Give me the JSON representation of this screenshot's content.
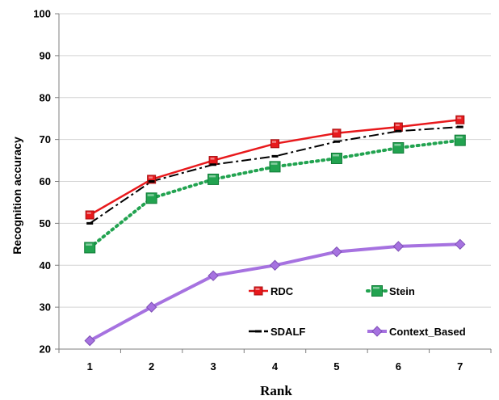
{
  "chart_data": {
    "type": "line",
    "title": "",
    "xlabel": "Rank",
    "ylabel": "Recognition accuracy",
    "x": [
      1,
      2,
      3,
      4,
      5,
      6,
      7
    ],
    "x_tick_labels": [
      "1",
      "2",
      "3",
      "4",
      "5",
      "6",
      "7"
    ],
    "ylim": [
      20,
      100
    ],
    "y_ticks": [
      20,
      30,
      40,
      50,
      60,
      70,
      80,
      90,
      100
    ],
    "y_tick_labels": [
      "20",
      "30",
      "40",
      "50",
      "60",
      "70",
      "80",
      "90",
      "100"
    ],
    "grid": "horizontal",
    "legend_position": "inside-lower",
    "series": [
      {
        "name": "RDC",
        "values": [
          52,
          60.5,
          65,
          69,
          71.5,
          73,
          74.7
        ],
        "color": "#e8191c",
        "marker": "square",
        "line": "solid"
      },
      {
        "name": "Stein",
        "values": [
          44.2,
          56,
          60.5,
          63.5,
          65.5,
          68,
          69.8
        ],
        "color": "#22a350",
        "marker": "square",
        "line": "dotted"
      },
      {
        "name": "SDALF",
        "values": [
          50,
          60,
          64,
          66,
          69.5,
          72,
          73
        ],
        "color": "#000000",
        "marker": "dash",
        "line": "dashdot"
      },
      {
        "name": "Context_Based",
        "values": [
          22,
          30,
          37.5,
          40,
          43.2,
          44.5,
          45
        ],
        "color": "#a672e0",
        "marker": "diamond",
        "line": "solid"
      }
    ]
  }
}
